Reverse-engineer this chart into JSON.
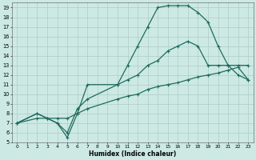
{
  "xlabel": "Humidex (Indice chaleur)",
  "bg_color": "#cce9e4",
  "grid_color": "#b0ccc8",
  "line_color": "#1e6b5e",
  "xlim": [
    -0.5,
    23.5
  ],
  "ylim": [
    5,
    19.5
  ],
  "xticks": [
    0,
    1,
    2,
    3,
    4,
    5,
    6,
    7,
    8,
    9,
    10,
    11,
    12,
    13,
    14,
    15,
    16,
    17,
    18,
    19,
    20,
    21,
    22,
    23
  ],
  "yticks": [
    5,
    6,
    7,
    8,
    9,
    10,
    11,
    12,
    13,
    14,
    15,
    16,
    17,
    18,
    19
  ],
  "curve1_x": [
    0,
    2,
    3,
    4,
    5,
    6,
    7,
    10,
    11,
    12,
    13,
    14,
    15,
    16,
    17,
    18,
    19,
    20,
    21,
    22,
    23
  ],
  "curve1_y": [
    7,
    8,
    7.5,
    7,
    5.5,
    8,
    11,
    11,
    13,
    15,
    17,
    19,
    19.2,
    19.2,
    19.2,
    18.5,
    17.5,
    15,
    13,
    12,
    11.5
  ],
  "curve2_x": [
    0,
    2,
    3,
    4,
    5,
    6,
    7,
    10,
    11,
    12,
    13,
    14,
    15,
    16,
    17,
    18,
    19,
    20,
    21,
    22,
    23
  ],
  "curve2_y": [
    7,
    8,
    7.5,
    7,
    6,
    8.5,
    9.5,
    11,
    11.5,
    12,
    13,
    13.5,
    14.5,
    15,
    15.5,
    15,
    13,
    13,
    13,
    13,
    13
  ],
  "curve3_x": [
    0,
    2,
    3,
    4,
    5,
    6,
    7,
    10,
    11,
    12,
    13,
    14,
    15,
    16,
    17,
    18,
    19,
    20,
    21,
    22,
    23
  ],
  "curve3_y": [
    7,
    7.5,
    7.5,
    7.5,
    7.5,
    8,
    8.5,
    9.5,
    9.8,
    10,
    10.5,
    10.8,
    11,
    11.2,
    11.5,
    11.8,
    12,
    12.2,
    12.5,
    12.8,
    11.5
  ]
}
